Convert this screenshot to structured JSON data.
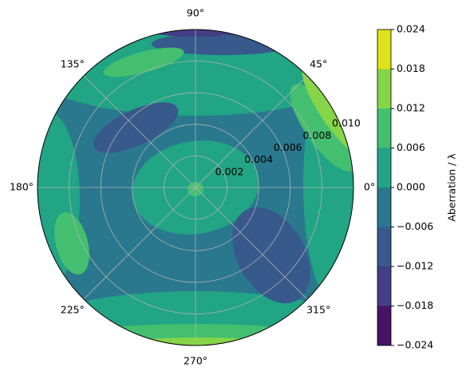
{
  "chart_data": {
    "type": "polar-contour",
    "colorbar_label": "Aberration / λ",
    "cticks": [
      {
        "value": -0.024,
        "label": "−0.024"
      },
      {
        "value": -0.018,
        "label": "−0.018"
      },
      {
        "value": -0.012,
        "label": "−0.012"
      },
      {
        "value": -0.006,
        "label": "−0.006"
      },
      {
        "value": 0,
        "label": "0.000"
      },
      0.006,
      0.012,
      0.018,
      0.024
    ],
    "colors": [
      "#471365",
      "#433e85",
      "#38598c",
      "#2a788e",
      "#21a585",
      "#44bf70",
      "#86d549",
      "#dde318"
    ],
    "rlim": [
      0,
      0.01
    ],
    "rticks": [
      0.002,
      0.004,
      0.006,
      0.008,
      0.01
    ],
    "rtick_labels": [
      "0.002",
      "0.004",
      "0.006",
      "0.008",
      "0.010"
    ],
    "thetaticks": [
      {
        "value": 0,
        "label": "0°"
      },
      {
        "value": 45,
        "label": "45°"
      },
      {
        "value": 90,
        "label": "90°"
      },
      {
        "value": 135,
        "label": "135°"
      },
      {
        "value": 180,
        "label": "180°"
      },
      {
        "value": 225,
        "label": "225°"
      },
      {
        "value": 270,
        "label": "270°"
      },
      {
        "value": 315,
        "label": "315°"
      }
    ],
    "grid": true
  }
}
